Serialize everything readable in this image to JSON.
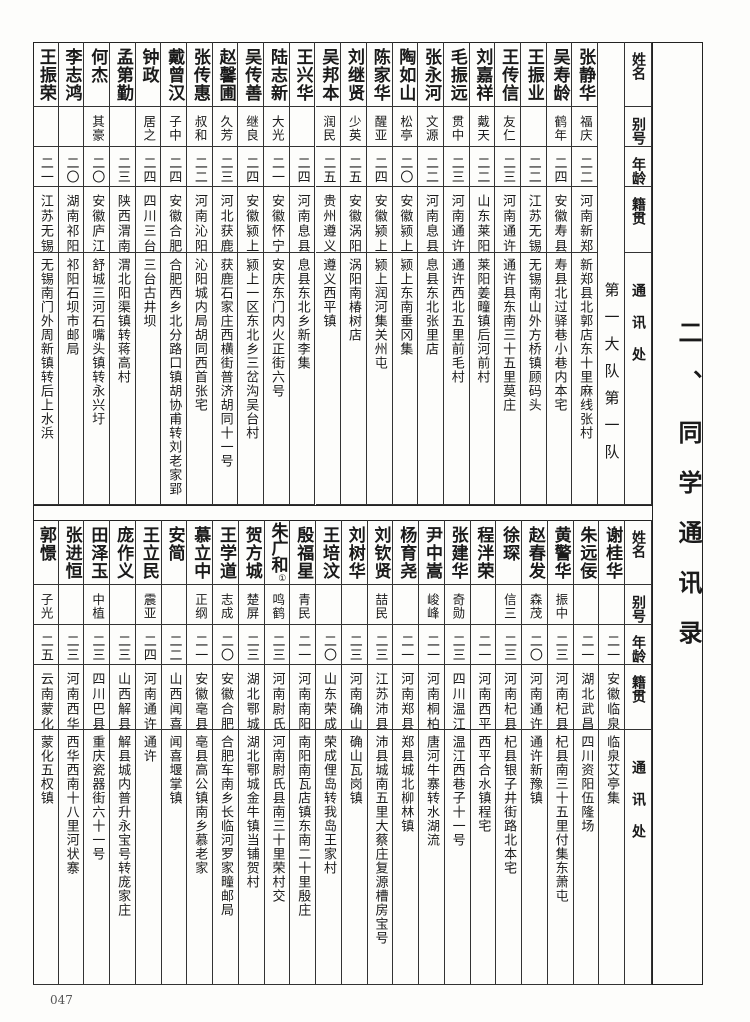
{
  "title": "二、同学通讯录",
  "page_number": "047",
  "headers": {
    "name": "姓名",
    "alias": "别号",
    "age": "年龄",
    "origin": "籍贯",
    "address": "通讯处"
  },
  "top_table": {
    "section_label": "第一大队第一队",
    "students": [
      {
        "name": "张静华",
        "alias": "福庆",
        "age": "二二",
        "origin": "河南新郑",
        "address": "新郑县北郭店东十里麻线张村"
      },
      {
        "name": "吴寿龄",
        "alias": "鹤年",
        "age": "二四",
        "origin": "安徽寿县",
        "address": "寿县北过驿巷小巷内本宅"
      },
      {
        "name": "王振业",
        "alias": "",
        "age": "二二",
        "origin": "江苏无锡",
        "address": "无锡南山外方桥镇顾码头"
      },
      {
        "name": "王传信",
        "alias": "友仁",
        "age": "二三",
        "origin": "河南通许",
        "address": "通许县东南三十五里莫庄"
      },
      {
        "name": "刘嘉祥",
        "alias": "戴天",
        "age": "二二",
        "origin": "山东莱阳",
        "address": "莱阳姜疃镇后河前村"
      },
      {
        "name": "毛振远",
        "alias": "贯中",
        "age": "二三",
        "origin": "河南通许",
        "address": "通许西北五里前毛村"
      },
      {
        "name": "张永河",
        "alias": "文源",
        "age": "二二",
        "origin": "河南息县",
        "address": "息县东北张里店"
      },
      {
        "name": "陶如山",
        "alias": "松亭",
        "age": "二〇",
        "origin": "安徽颍上",
        "address": "颍上东南垂冈集"
      },
      {
        "name": "陈家华",
        "alias": "醒亚",
        "age": "二四",
        "origin": "安徽颍上",
        "address": "颍上润河集关州屯"
      },
      {
        "name": "刘继贤",
        "alias": "少英",
        "age": "二五",
        "origin": "安徽涡阳",
        "address": "涡阳南椿树店"
      },
      {
        "name": "吴邦本",
        "alias": "润民",
        "age": "二五",
        "origin": "贵州遵义",
        "address": "遵义西平镇"
      },
      {
        "name": "王兴华",
        "alias": "",
        "age": "二四",
        "origin": "河南息县",
        "address": "息县东北乡新李集"
      },
      {
        "name": "陆志新",
        "alias": "大光",
        "age": "二一",
        "origin": "安徽怀宁",
        "address": "安庆东门内火正街六号"
      },
      {
        "name": "吴传善",
        "alias": "继良",
        "age": "二四",
        "origin": "安徽颍上",
        "address": "颍上一区东北乡三岔沟吴台村"
      },
      {
        "name": "赵馨圃",
        "alias": "久芳",
        "age": "二三",
        "origin": "河北获鹿",
        "address": "获鹿石家庄西横街普济胡同十一号"
      },
      {
        "name": "张传惠",
        "alias": "叔和",
        "age": "二二",
        "origin": "河南沁阳",
        "address": "沁阳城内局胡同西首张宅"
      },
      {
        "name": "戴曾汉",
        "alias": "子中",
        "age": "二四",
        "origin": "安徽合肥",
        "address": "合肥西乡北分路口镇胡协甫转刘老家郢"
      },
      {
        "name": "钟政",
        "alias": "居之",
        "age": "二四",
        "origin": "四川三台",
        "address": "三台古井坝"
      },
      {
        "name": "孟第勤",
        "alias": "",
        "age": "二三",
        "origin": "陕西渭南",
        "address": "渭北阳渠镇转蒋高村"
      },
      {
        "name": "何杰",
        "alias": "其豪",
        "age": "二〇",
        "origin": "安徽庐江",
        "address": "舒城三河石嘴头镇转永兴圩"
      },
      {
        "name": "李志鸿",
        "alias": "",
        "age": "二〇",
        "origin": "湖南祁阳",
        "address": "祁阳石坝市邮局"
      },
      {
        "name": "王振荣",
        "alias": "",
        "age": "二一",
        "origin": "江苏无锡",
        "address": "无锡南门外周新镇转后上水浜"
      }
    ]
  },
  "bottom_table": {
    "students": [
      {
        "name": "谢桂华",
        "alias": "",
        "age": "二一",
        "origin": "安徽临泉",
        "address": "临泉艾亭集"
      },
      {
        "name": "朱远佞",
        "alias": "",
        "age": "二一",
        "origin": "湖北武昌",
        "address": "四川资阳伍隆场"
      },
      {
        "name": "黄警华",
        "alias": "振中",
        "age": "二三",
        "origin": "河南杞县",
        "address": "杞县南三十五里付集东萧屯"
      },
      {
        "name": "赵春发",
        "alias": "森茂",
        "age": "二〇",
        "origin": "河南通许",
        "address": "通许新豫镇"
      },
      {
        "name": "徐琛",
        "alias": "信三",
        "age": "二三",
        "origin": "河南杞县",
        "address": "杞县银子井街路北本宅"
      },
      {
        "name": "程泮荣",
        "alias": "",
        "age": "二一",
        "origin": "河南西平",
        "address": "西平合水镇程宅"
      },
      {
        "name": "张建华",
        "alias": "奇勋",
        "age": "二三",
        "origin": "四川温江",
        "address": "温江西巷子十一号"
      },
      {
        "name": "尹中嵩",
        "alias": "峻峰",
        "age": "二一",
        "origin": "河南桐柏",
        "address": "唐河牛寨转水湖流"
      },
      {
        "name": "杨育尧",
        "alias": "",
        "age": "二一",
        "origin": "河南郑县",
        "address": "郑县城北柳林镇"
      },
      {
        "name": "刘钦贤",
        "alias": "喆民",
        "age": "二三",
        "origin": "江苏沛县",
        "address": "沛县城南五里大蔡庄复源槽房宝号"
      },
      {
        "name": "刘树华",
        "alias": "",
        "age": "二三",
        "origin": "河南确山",
        "address": "确山瓦岗镇"
      },
      {
        "name": "王培汶",
        "alias": "",
        "age": "二〇",
        "origin": "山东荣成",
        "address": "荣成俚岛转我岛王家村"
      },
      {
        "name": "殷福星",
        "alias": "青民",
        "age": "二一",
        "origin": "河南南阳",
        "address": "南阳南瓦店镇东南二十里殷庄"
      },
      {
        "name": "朱广和",
        "name_note": "①",
        "alias": "鸣鹤",
        "age": "二三",
        "origin": "河南尉氏",
        "address": "河南尉氏县南三十里荣村交"
      },
      {
        "name": "贺方城",
        "alias": "楚屏",
        "age": "二三",
        "origin": "湖北鄂城",
        "address": "湖北鄂城金牛镇当铺贺村"
      },
      {
        "name": "王学道",
        "alias": "志成",
        "age": "二〇",
        "origin": "安徽合肥",
        "address": "合肥车南乡长临河罗家疃邮局"
      },
      {
        "name": "慕立中",
        "alias": "正纲",
        "age": "二一",
        "origin": "安徽亳县",
        "address": "亳县高公镇南乡慕老家"
      },
      {
        "name": "安简",
        "alias": "",
        "age": "二二",
        "origin": "山西闻喜",
        "address": "闻喜堰掌镇"
      },
      {
        "name": "王立民",
        "alias": "震亚",
        "age": "二四",
        "origin": "河南通许",
        "address": "通许"
      },
      {
        "name": "庞作义",
        "alias": "",
        "age": "二三",
        "origin": "山西解县",
        "address": "解县城内普升永宝号转庞家庄"
      },
      {
        "name": "田泽玉",
        "alias": "中植",
        "age": "二三",
        "origin": "四川巴县",
        "address": "重庆瓷器街六十一号"
      },
      {
        "name": "张进恒",
        "alias": "",
        "age": "二三",
        "origin": "河南西华",
        "address": "西华西南十八里河状寨"
      },
      {
        "name": "郭憬",
        "alias": "子光",
        "age": "二五",
        "origin": "云南蒙化",
        "address": "蒙化五权镇"
      }
    ]
  }
}
